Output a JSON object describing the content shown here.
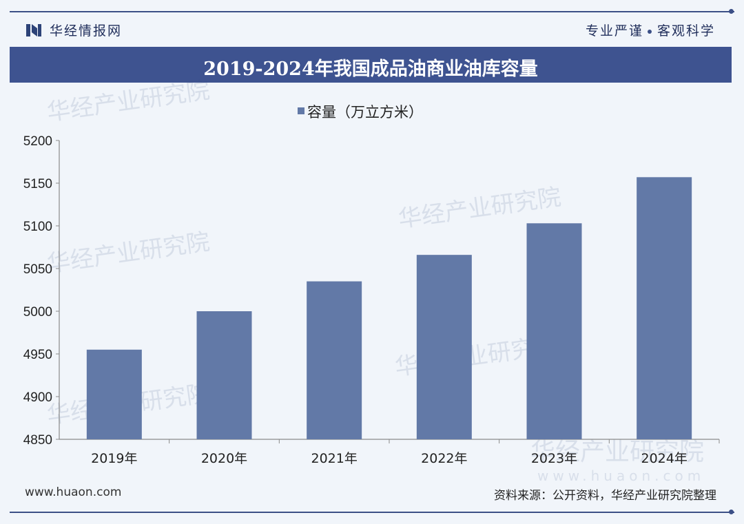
{
  "header": {
    "logo_text": "华经情报网",
    "slogan_left": "专业严谨",
    "slogan_right": "客观科学"
  },
  "title": "2019-2024年我国成品油商业油库容量",
  "colors": {
    "bar": "#6279a7",
    "title_bar": "#3e5390",
    "frame": "#3b4f86"
  },
  "chart_data": {
    "type": "bar",
    "categories": [
      "2019年",
      "2020年",
      "2021年",
      "2022年",
      "2023年",
      "2024年"
    ],
    "series": [
      {
        "name": "容量（万立方米）",
        "values": [
          4955,
          5000,
          5035,
          5066,
          5103,
          5157
        ]
      }
    ],
    "ylim": [
      4850,
      5200
    ],
    "yticks": [
      4850,
      4900,
      4950,
      5000,
      5050,
      5100,
      5150,
      5200
    ],
    "grid": false,
    "legend": "top-center"
  },
  "watermarks": [
    "华经产业研究院",
    "www.huaon.com"
  ],
  "footer": {
    "url": "www.huaon.com",
    "source": "资料来源：公开资料，华经产业研究院整理"
  }
}
